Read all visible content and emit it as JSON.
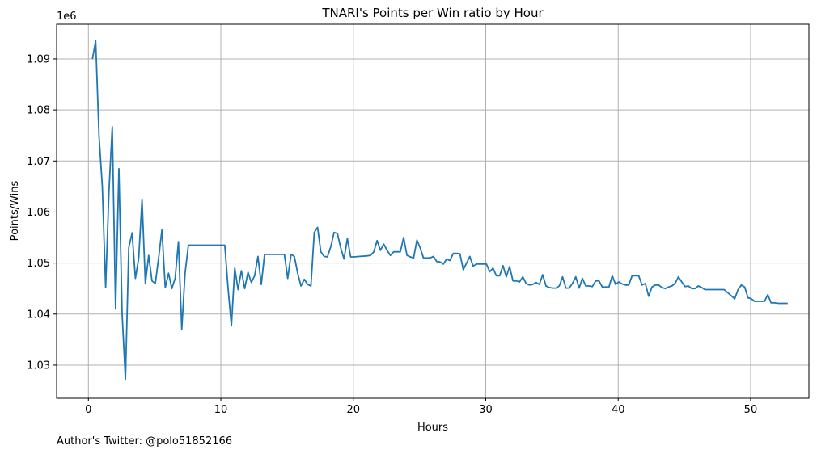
{
  "chart_data": {
    "type": "line",
    "title": "TNARI's Points per Win ratio by Hour",
    "xlabel": "Hours",
    "ylabel": "Points/Wins",
    "y_offset_label": "1e6",
    "xlim": [
      -2.4,
      54.4
    ],
    "ylim": [
      1.0235,
      1.0968
    ],
    "xticks": [
      0,
      10,
      20,
      30,
      40,
      50
    ],
    "yticks": [
      1.03,
      1.04,
      1.05,
      1.06,
      1.07,
      1.08,
      1.09
    ],
    "ytick_labels": [
      "1.03",
      "1.04",
      "1.05",
      "1.06",
      "1.07",
      "1.08",
      "1.09"
    ],
    "grid": true,
    "series": [
      {
        "color": "#1f77b4",
        "x": [
          0.3,
          0.55,
          0.8,
          1.05,
          1.3,
          1.55,
          1.8,
          2.05,
          2.3,
          2.55,
          2.8,
          3.05,
          3.3,
          3.55,
          3.8,
          4.05,
          4.3,
          4.55,
          4.8,
          5.05,
          5.3,
          5.55,
          5.8,
          6.05,
          6.3,
          6.55,
          6.8,
          7.05,
          7.3,
          7.55,
          7.8,
          8.5,
          9.5,
          10.3,
          10.55,
          10.8,
          11.05,
          11.3,
          11.55,
          11.8,
          12.05,
          12.3,
          12.55,
          12.8,
          13.05,
          13.3,
          14.0,
          14.8,
          15.05,
          15.3,
          15.55,
          15.8,
          16.05,
          16.3,
          16.55,
          16.8,
          17.05,
          17.3,
          17.55,
          17.8,
          18.05,
          18.3,
          18.55,
          18.8,
          19.05,
          19.3,
          19.55,
          19.8,
          20.05,
          20.5,
          21.0,
          21.3,
          21.55,
          21.8,
          22.05,
          22.3,
          22.55,
          22.8,
          23.05,
          23.3,
          23.55,
          23.8,
          24.05,
          24.3,
          24.55,
          24.8,
          25.05,
          25.3,
          25.55,
          25.8,
          26.05,
          26.3,
          26.55,
          26.8,
          27.05,
          27.3,
          27.55,
          27.8,
          28.05,
          28.3,
          28.55,
          28.8,
          29.05,
          29.3,
          29.55,
          29.8,
          30.05,
          30.3,
          30.55,
          30.8,
          31.05,
          31.3,
          31.55,
          31.8,
          32.05,
          32.3,
          32.55,
          32.8,
          33.05,
          33.3,
          33.55,
          33.8,
          34.05,
          34.3,
          34.55,
          34.8,
          35.05,
          35.3,
          35.55,
          35.8,
          36.05,
          36.3,
          36.55,
          36.8,
          37.05,
          37.3,
          37.55,
          37.8,
          38.05,
          38.3,
          38.55,
          38.8,
          39.05,
          39.3,
          39.55,
          39.8,
          40.05,
          40.3,
          40.55,
          40.8,
          41.05,
          41.3,
          41.55,
          41.8,
          42.05,
          42.3,
          42.55,
          42.8,
          43.05,
          43.3,
          43.55,
          43.8,
          44.05,
          44.3,
          44.55,
          44.8,
          45.05,
          45.3,
          45.55,
          45.8,
          46.05,
          46.3,
          46.55,
          46.8,
          47.05,
          48.0,
          48.8,
          49.05,
          49.3,
          49.55,
          49.8,
          50.05,
          50.3,
          50.55,
          50.8,
          51.05,
          51.3,
          51.55,
          51.8,
          52.1,
          52.8
        ],
        "y": [
          1.09,
          1.0935,
          1.075,
          1.065,
          1.0452,
          1.064,
          1.0767,
          1.041,
          1.0685,
          1.04,
          1.0272,
          1.053,
          1.0559,
          1.047,
          1.051,
          1.0625,
          1.046,
          1.0515,
          1.0465,
          1.046,
          1.051,
          1.0565,
          1.0452,
          1.048,
          1.045,
          1.047,
          1.0542,
          1.037,
          1.048,
          1.0535,
          1.0535,
          1.0535,
          1.0535,
          1.0535,
          1.045,
          1.0377,
          1.049,
          1.0448,
          1.0485,
          1.045,
          1.0482,
          1.0462,
          1.0475,
          1.0513,
          1.0458,
          1.0517,
          1.0517,
          1.0517,
          1.047,
          1.0517,
          1.0513,
          1.048,
          1.0455,
          1.0468,
          1.0458,
          1.0455,
          1.056,
          1.057,
          1.0522,
          1.0513,
          1.0512,
          1.0532,
          1.056,
          1.0558,
          1.053,
          1.0508,
          1.0548,
          1.0512,
          1.0512,
          1.0513,
          1.0514,
          1.0515,
          1.0522,
          1.0544,
          1.0525,
          1.0537,
          1.0525,
          1.0515,
          1.0522,
          1.0522,
          1.0522,
          1.055,
          1.0515,
          1.0512,
          1.051,
          1.0545,
          1.053,
          1.051,
          1.051,
          1.051,
          1.0513,
          1.0503,
          1.0502,
          1.0498,
          1.0508,
          1.0505,
          1.0519,
          1.0519,
          1.0518,
          1.0487,
          1.05,
          1.0513,
          1.0494,
          1.0498,
          1.0498,
          1.0498,
          1.0498,
          1.0483,
          1.049,
          1.0475,
          1.0475,
          1.0495,
          1.0473,
          1.0493,
          1.0465,
          1.0465,
          1.0463,
          1.0473,
          1.046,
          1.0457,
          1.0458,
          1.0462,
          1.0458,
          1.0477,
          1.0455,
          1.0452,
          1.0451,
          1.0451,
          1.0455,
          1.0473,
          1.0451,
          1.0451,
          1.046,
          1.0473,
          1.0451,
          1.047,
          1.0455,
          1.0455,
          1.0454,
          1.0465,
          1.0465,
          1.0453,
          1.0453,
          1.0453,
          1.0475,
          1.0458,
          1.0463,
          1.0459,
          1.0457,
          1.0457,
          1.0475,
          1.0475,
          1.0475,
          1.0457,
          1.046,
          1.0435,
          1.0453,
          1.0457,
          1.0457,
          1.0452,
          1.045,
          1.0453,
          1.0455,
          1.046,
          1.0473,
          1.0463,
          1.0454,
          1.0455,
          1.045,
          1.045,
          1.0455,
          1.0452,
          1.0448,
          1.0448,
          1.0448,
          1.0448,
          1.043,
          1.0448,
          1.0457,
          1.0453,
          1.0432,
          1.043,
          1.0425,
          1.0425,
          1.0425,
          1.0425,
          1.0438,
          1.0422,
          1.0422,
          1.0421,
          1.0421
        ]
      }
    ]
  },
  "footer": "Author's Twitter: @polo51852166"
}
